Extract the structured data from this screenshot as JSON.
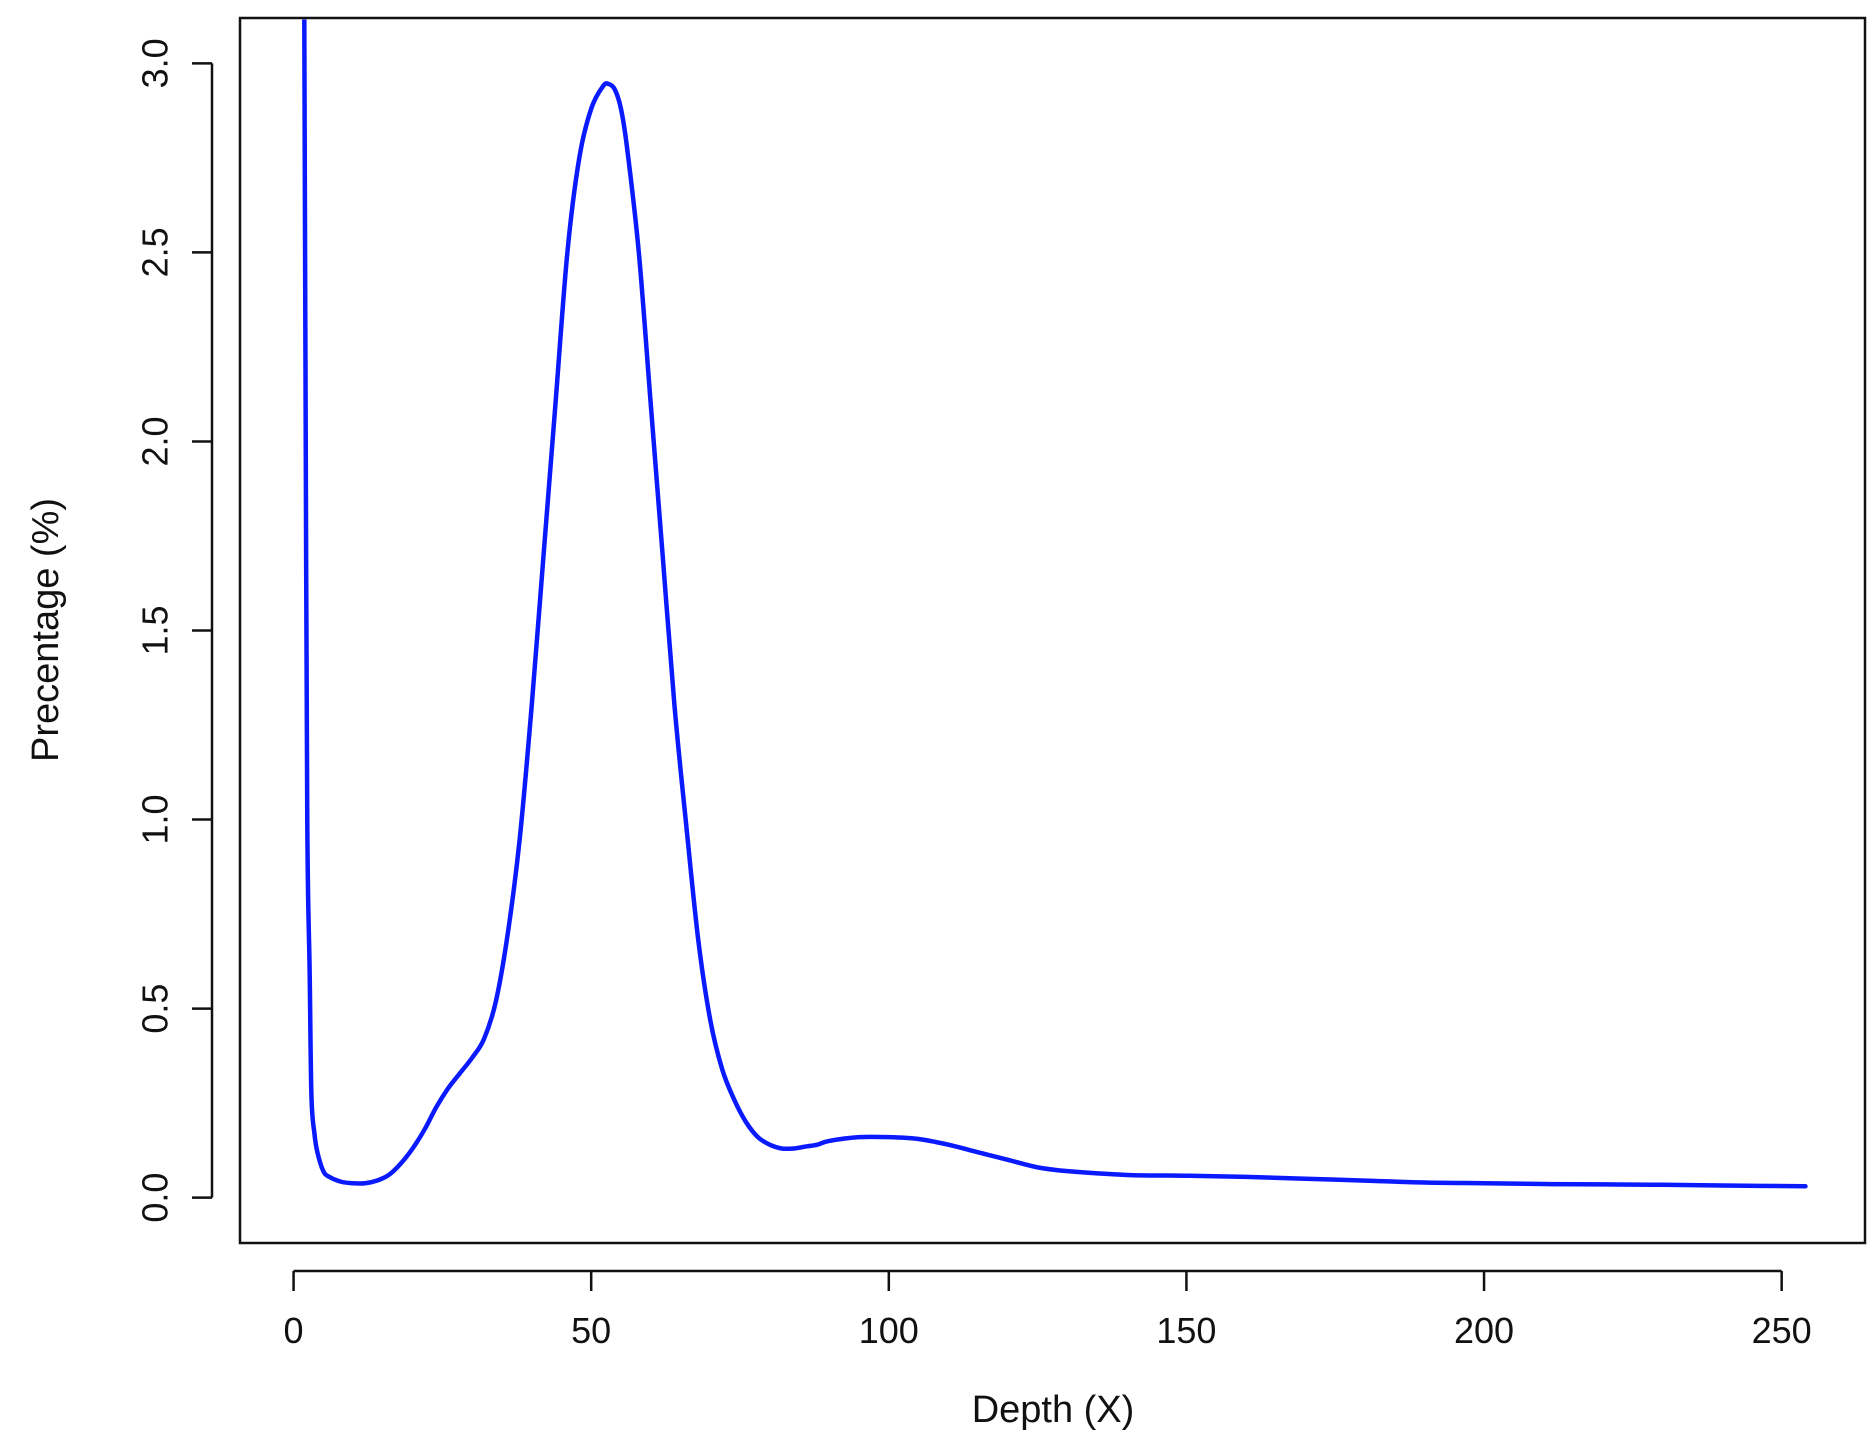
{
  "chart_data": {
    "type": "line",
    "xlabel": "Depth (X)",
    "ylabel": "Precentage (%)",
    "xlim": [
      -9,
      264
    ],
    "ylim": [
      -0.12,
      3.12
    ],
    "x_ticks": [
      0,
      50,
      100,
      150,
      200,
      250
    ],
    "y_ticks": [
      0.0,
      0.5,
      1.0,
      1.5,
      2.0,
      2.5,
      3.0
    ],
    "x_tick_labels": [
      "0",
      "50",
      "100",
      "150",
      "200",
      "250"
    ],
    "y_tick_labels": [
      "0.0",
      "0.5",
      "1.0",
      "1.5",
      "2.0",
      "2.5",
      "3.0"
    ],
    "grid": false,
    "line_color": "#0a1aff",
    "series": [
      {
        "x": [
          1.8,
          2.0,
          2.3,
          2.7,
          3.0,
          3.5,
          4.0,
          5.0,
          6.0,
          8.0,
          10.0,
          12.0,
          14.0,
          16.0,
          18.0,
          20.0,
          22.0,
          24.0,
          26.0,
          28.0,
          30.0,
          32.0,
          34.0,
          36.0,
          38.0,
          40.0,
          42.0,
          44.0,
          46.0,
          48.0,
          50.0,
          52.0,
          53.0,
          54.0,
          55.0,
          56.0,
          58.0,
          60.0,
          62.0,
          64.0,
          66.0,
          68.0,
          70.0,
          72.0,
          74.0,
          76.0,
          78.0,
          80.0,
          82.0,
          84.0,
          86.0,
          88.0,
          90.0,
          95.0,
          100.0,
          105.0,
          110.0,
          115.0,
          120.0,
          125.0,
          130.0,
          140.0,
          150.0,
          160.0,
          170.0,
          180.0,
          190.0,
          200.0,
          210.0,
          220.0,
          230.0,
          240.0,
          254.0
        ],
        "y": [
          3.12,
          2.2,
          1.0,
          0.6,
          0.27,
          0.17,
          0.12,
          0.07,
          0.055,
          0.042,
          0.038,
          0.038,
          0.045,
          0.06,
          0.09,
          0.13,
          0.18,
          0.24,
          0.29,
          0.33,
          0.37,
          0.42,
          0.52,
          0.7,
          0.95,
          1.3,
          1.7,
          2.1,
          2.5,
          2.75,
          2.88,
          2.94,
          2.945,
          2.93,
          2.88,
          2.78,
          2.5,
          2.1,
          1.7,
          1.3,
          0.98,
          0.68,
          0.47,
          0.34,
          0.26,
          0.2,
          0.16,
          0.14,
          0.13,
          0.13,
          0.135,
          0.14,
          0.15,
          0.16,
          0.16,
          0.155,
          0.14,
          0.12,
          0.1,
          0.08,
          0.07,
          0.06,
          0.058,
          0.055,
          0.05,
          0.045,
          0.04,
          0.038,
          0.036,
          0.035,
          0.034,
          0.032,
          0.03
        ]
      }
    ]
  }
}
